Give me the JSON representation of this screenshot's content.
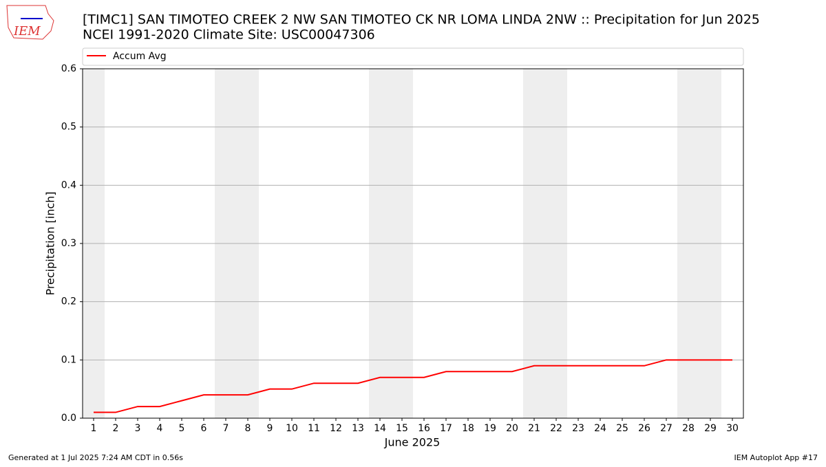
{
  "logo_text": "IEM",
  "chart_data": {
    "type": "line",
    "title": "[TIMC1] SAN TIMOTEO CREEK 2 NW SAN TIMOTEO CK NR LOMA LINDA 2NW :: Precipitation for Jun 2025",
    "subtitle": "NCEI 1991-2020 Climate Site: USC00047306",
    "xlabel": "June 2025",
    "ylabel": "Precipitation [inch]",
    "x": [
      1,
      2,
      3,
      4,
      5,
      6,
      7,
      8,
      9,
      10,
      11,
      12,
      13,
      14,
      15,
      16,
      17,
      18,
      19,
      20,
      21,
      22,
      23,
      24,
      25,
      26,
      27,
      28,
      29,
      30
    ],
    "series": [
      {
        "name": "Accum Avg",
        "color": "#ff0000",
        "values": [
          0.01,
          0.01,
          0.02,
          0.02,
          0.03,
          0.04,
          0.04,
          0.04,
          0.05,
          0.05,
          0.06,
          0.06,
          0.06,
          0.07,
          0.07,
          0.07,
          0.08,
          0.08,
          0.08,
          0.08,
          0.09,
          0.09,
          0.09,
          0.09,
          0.09,
          0.09,
          0.1,
          0.1,
          0.1,
          0.1
        ]
      }
    ],
    "xlim": [
      0.5,
      30.5
    ],
    "ylim": [
      0,
      0.6
    ],
    "xticks": [
      1,
      2,
      3,
      4,
      5,
      6,
      7,
      8,
      9,
      10,
      11,
      12,
      13,
      14,
      15,
      16,
      17,
      18,
      19,
      20,
      21,
      22,
      23,
      24,
      25,
      26,
      27,
      28,
      29,
      30
    ],
    "yticks": [
      {
        "value": 0,
        "label": "0.0"
      },
      0.1,
      0.2,
      0.3,
      0.4,
      0.5,
      0.6
    ],
    "shaded_days": [
      1,
      7,
      8,
      14,
      15,
      21,
      22,
      28,
      29
    ],
    "shade_color": "#eeeeee",
    "grid": true,
    "legend": "top",
    "footer_left": "Generated at 1 Jul 2025 7:24 AM CDT in 0.56s",
    "footer_right": "IEM Autoplot App #17"
  }
}
